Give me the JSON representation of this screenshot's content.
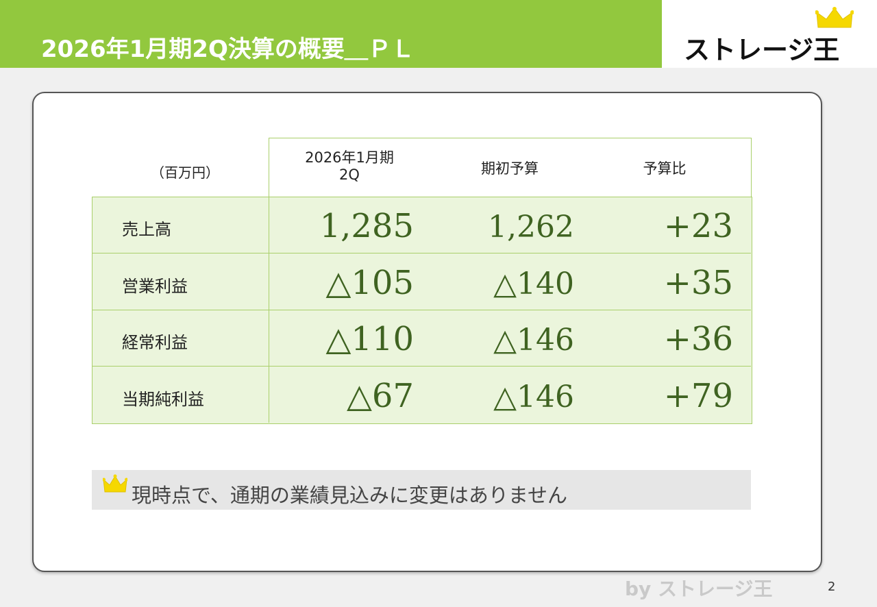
{
  "header": {
    "title": "2026年1月期2Q決算の概要＿ＰＬ",
    "logo_text": "ストレージ王",
    "accent_color": "#92c83e"
  },
  "table": {
    "unit": "（百万円）",
    "columns": [
      "2026年1月期\n2Q",
      "期初予算",
      "予算比"
    ],
    "column_line1": "2026年1月期",
    "column_line2": "2Q",
    "rows": [
      {
        "label": "売上高",
        "actual": "1,285",
        "budget": "1,262",
        "diff": "+23"
      },
      {
        "label": "営業利益",
        "actual": "△105",
        "budget": "△140",
        "diff": "+35"
      },
      {
        "label": "経常利益",
        "actual": "△110",
        "budget": "△146",
        "diff": "+36"
      },
      {
        "label": "当期純利益",
        "actual": "△67",
        "budget": "△146",
        "diff": "+79"
      }
    ]
  },
  "note": {
    "text": "現時点で、通期の業績見込みに変更はありません",
    "icon": "crown-icon"
  },
  "footer": {
    "brand": "by ストレージ王",
    "page_number": "2"
  }
}
